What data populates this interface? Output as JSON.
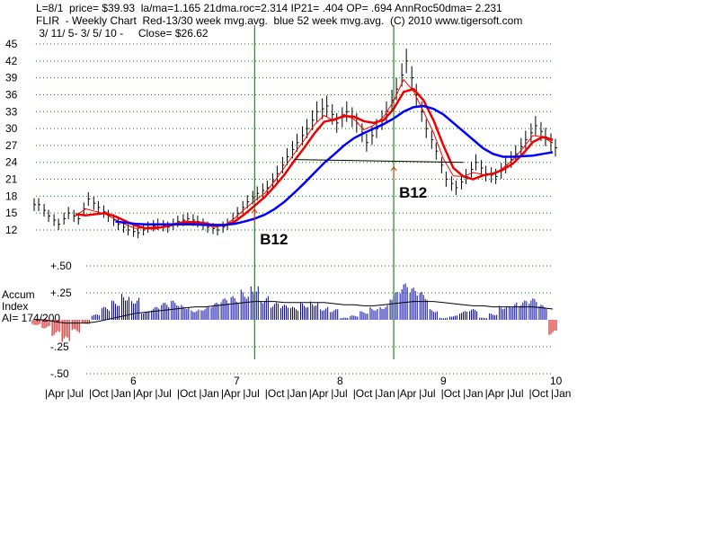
{
  "header": {
    "line1": "L=8/1  price= $39.93  la/ma=1.165 21dma.roc=2.314 IP21= .404 OP= .694 AnnRoc50dma= 2.231",
    "line2": "FLIR  - Weekly Chart  Red-13/30 week mvg.avg.  blue 52 week mvg.avg.  (C) 2010 www.tigersoft.com",
    "line3": " 3/ 11/ 5- 3/ 5/ 10 -     Close= $26.62"
  },
  "indicator_label": {
    "line1": "Accum",
    "line2": "Index",
    "line3": "AI= 174/200"
  },
  "colors": {
    "price_bars": "#000000",
    "ma13": "#ff0000",
    "ma30": "#ee0000",
    "ma52": "#0000ff",
    "grid": "#008800",
    "signal_line": "#006600",
    "ai_positive": "#0000aa",
    "ai_negative": "#cc0000"
  },
  "chart_data": [
    {
      "type": "line",
      "title": "FLIR  - Weekly Chart",
      "y_ticks": [
        45,
        42,
        39,
        36,
        33,
        30,
        27,
        24,
        21,
        18,
        15,
        12
      ],
      "ylim": [
        10,
        46
      ],
      "x_labels_years": [
        "6",
        "7",
        "8",
        "9",
        "10"
      ],
      "x_labels_months": [
        "Apr",
        "Jul",
        "Oct",
        "Jan",
        "Apr",
        "Jul",
        "Oct",
        "Jan",
        "Apr",
        "Jul",
        "Oct",
        "Jan",
        "Apr",
        "Jul",
        "Oct",
        "Jan",
        "Apr",
        "Jul",
        "Oct",
        "Jan",
        "Apr",
        "Jul",
        "Oct",
        "Jan"
      ],
      "series": [
        {
          "name": "Price",
          "key": "price",
          "values": [
            16.5,
            14.5,
            13.0,
            15.0,
            14.0,
            17.5,
            16.0,
            14.5,
            13.0,
            12.0,
            11.5,
            12.5,
            13.0,
            12.5,
            13.5,
            14.0,
            13.5,
            12.5,
            12.0,
            13.0,
            15.0,
            17.0,
            18.5,
            19.5,
            22.0,
            25.0,
            27.5,
            30.0,
            33.0,
            34.0,
            31.0,
            33.0,
            31.0,
            27.5,
            30.0,
            33.0,
            37.0,
            42.0,
            36.0,
            30.0,
            26.0,
            21.0,
            19.5,
            21.5,
            24.0,
            22.0,
            21.5,
            23.5,
            25.5,
            28.0,
            30.5,
            28.5,
            26.6
          ]
        },
        {
          "name": "13/30 week mvg.avg.",
          "key": "ma13",
          "values": [
            null,
            null,
            null,
            null,
            14.8,
            14.6,
            14.8,
            15.0,
            14.4,
            13.6,
            12.8,
            12.3,
            12.3,
            12.6,
            13.0,
            13.3,
            13.4,
            13.2,
            12.8,
            12.8,
            13.5,
            14.8,
            16.3,
            17.8,
            19.7,
            21.8,
            24.3,
            26.6,
            29.1,
            31.2,
            31.6,
            32.2,
            32.1,
            31.3,
            31.0,
            31.5,
            33.5,
            36.5,
            37.0,
            35.0,
            31.5,
            27.0,
            23.0,
            21.5,
            21.0,
            21.7,
            22.0,
            22.7,
            23.8,
            25.5,
            27.6,
            28.5,
            28.0
          ]
        },
        {
          "name": "52 week mvg.avg.",
          "key": "ma52",
          "values": [
            null,
            null,
            null,
            null,
            null,
            null,
            null,
            null,
            13.5,
            13.3,
            13.1,
            13.0,
            13.0,
            13.0,
            13.0,
            13.0,
            13.0,
            12.9,
            12.9,
            12.9,
            13.1,
            13.5,
            14.0,
            14.7,
            15.7,
            17.0,
            18.6,
            20.3,
            22.1,
            23.9,
            25.4,
            27.0,
            28.3,
            29.2,
            30.0,
            30.8,
            31.8,
            33.0,
            33.8,
            34.0,
            33.5,
            32.5,
            31.0,
            29.5,
            28.0,
            26.5,
            25.5,
            25.0,
            25.0,
            25.1,
            25.2,
            25.5,
            25.8
          ]
        }
      ],
      "annotations": [
        {
          "text": "B12",
          "x_index": 22
        },
        {
          "text": "B12",
          "x_index": 36
        }
      ]
    },
    {
      "type": "bar",
      "title": "Accum Index",
      "y_ticks": [
        "+.50",
        "+.25",
        "-.25",
        "-.50"
      ],
      "ylim": [
        -0.5,
        0.5
      ],
      "series": [
        {
          "name": "AI",
          "key": "ai",
          "values": [
            -0.05,
            -0.08,
            -0.15,
            -0.22,
            -0.12,
            -0.04,
            0.05,
            0.12,
            0.18,
            0.25,
            0.21,
            0.08,
            0.12,
            0.16,
            0.18,
            0.14,
            0.1,
            0.12,
            0.16,
            0.2,
            0.22,
            0.28,
            0.34,
            0.22,
            0.16,
            0.14,
            0.12,
            0.16,
            0.18,
            0.12,
            0.1,
            0.02,
            0.04,
            0.08,
            0.12,
            0.14,
            0.26,
            0.34,
            0.3,
            0.26,
            0.1,
            0.02,
            0.04,
            0.08,
            0.1,
            0.02,
            0.06,
            0.14,
            0.16,
            0.18,
            0.2,
            0.14,
            -0.14
          ]
        },
        {
          "name": "AI MA",
          "key": "ai_ma",
          "values": [
            0.0,
            0.0,
            -0.02,
            -0.03,
            -0.03,
            -0.03,
            -0.02,
            0.0,
            0.02,
            0.04,
            0.06,
            0.07,
            0.08,
            0.09,
            0.1,
            0.11,
            0.12,
            0.12,
            0.13,
            0.14,
            0.15,
            0.16,
            0.17,
            0.17,
            0.17,
            0.16,
            0.16,
            0.16,
            0.16,
            0.16,
            0.15,
            0.14,
            0.14,
            0.13,
            0.13,
            0.14,
            0.15,
            0.16,
            0.17,
            0.17,
            0.17,
            0.16,
            0.15,
            0.14,
            0.13,
            0.13,
            0.12,
            0.12,
            0.12,
            0.12,
            0.12,
            0.11,
            0.1
          ]
        }
      ]
    }
  ]
}
